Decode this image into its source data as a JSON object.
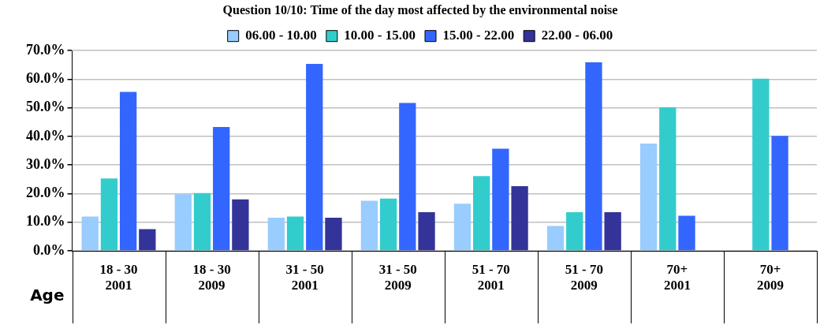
{
  "chart_data": {
    "type": "bar",
    "title": "Question 10/10: Time of the day most affected by the environmental noise",
    "xlabel": "Age",
    "categories": [
      "18 - 30\n2001",
      "18 - 30\n2009",
      "31 - 50\n2001",
      "31 - 50\n2009",
      "51 - 70\n2001",
      "51 - 70\n2009",
      "70+\n2001",
      "70+\n2009"
    ],
    "series": [
      {
        "name": "06.00 - 10.00",
        "color": "#99ccff",
        "values": [
          12,
          19.8,
          11.6,
          17.5,
          16.5,
          8.7,
          37.5,
          null
        ]
      },
      {
        "name": "10.00 - 15.00",
        "color": "#33cccc",
        "values": [
          25.3,
          20.2,
          12,
          18.3,
          26.1,
          13.5,
          50.2,
          60.2
        ]
      },
      {
        "name": "15.00 - 22.00",
        "color": "#3366ff",
        "values": [
          55.6,
          43.3,
          65.4,
          51.7,
          35.7,
          65.9,
          12.3,
          40.2
        ]
      },
      {
        "name": "22.00 - 06.00",
        "color": "#333399",
        "values": [
          7.6,
          18,
          11.6,
          13.5,
          22.6,
          13.5,
          null,
          null
        ]
      }
    ],
    "ylim": [
      0,
      70
    ],
    "yticks": [
      {
        "value": 0,
        "label": "0.0%"
      },
      {
        "value": 10,
        "label": "10.0%"
      },
      {
        "value": 20,
        "label": "20.0%"
      },
      {
        "value": 30,
        "label": "30.0%"
      },
      {
        "value": 40,
        "label": "40.0%"
      },
      {
        "value": 50,
        "label": "50.0%"
      },
      {
        "value": 60,
        "label": "60.0%"
      },
      {
        "value": 70,
        "label": "70.0%"
      }
    ],
    "grid": "y",
    "legend": "top"
  }
}
